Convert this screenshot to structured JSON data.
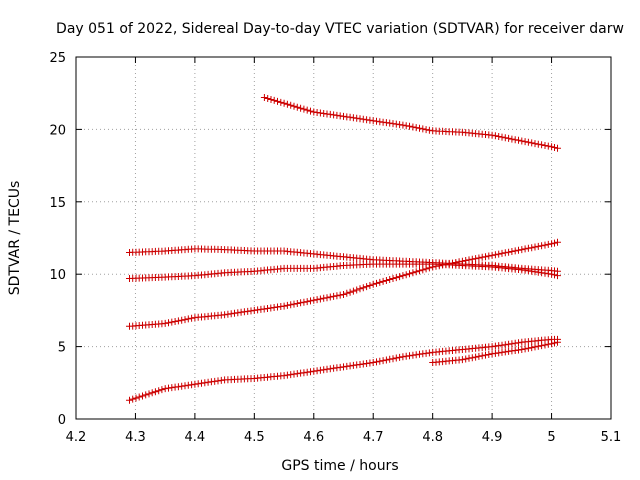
{
  "chart_data": {
    "type": "scatter",
    "title": "Day 051 of 2022, Sidereal Day-to-day VTEC variation (SDTVAR) for receiver darw",
    "xlabel": "GPS time / hours",
    "ylabel": "SDTVAR / TECUs",
    "xlim": [
      4.2,
      5.1
    ],
    "ylim": [
      0,
      25
    ],
    "xticks": [
      4.2,
      4.3,
      4.4,
      4.5,
      4.6,
      4.7,
      4.8,
      4.9,
      5.0,
      5.1
    ],
    "xtick_labels": [
      "4.2",
      "4.3",
      "4.4",
      "4.5",
      "4.6",
      "4.7",
      "4.8",
      "4.9",
      "5",
      "5.1"
    ],
    "yticks": [
      0,
      5,
      10,
      15,
      20,
      25
    ],
    "ytick_labels": [
      "0",
      "5",
      "10",
      "15",
      "20",
      "25"
    ],
    "grid": true,
    "marker": "plus",
    "color": "#cc0000",
    "series": [
      {
        "name": "s1",
        "x": [
          4.517,
          4.55,
          4.6,
          4.65,
          4.7,
          4.75,
          4.8,
          4.85,
          4.9,
          4.95,
          5.0,
          5.01
        ],
        "y": [
          22.2,
          21.8,
          21.2,
          20.9,
          20.6,
          20.3,
          19.9,
          19.8,
          19.6,
          19.2,
          18.8,
          18.7
        ]
      },
      {
        "name": "s2",
        "x": [
          4.29,
          4.35,
          4.4,
          4.45,
          4.5,
          4.55,
          4.6,
          4.65,
          4.7,
          4.75,
          4.8,
          4.85,
          4.9,
          4.95,
          5.0,
          5.01
        ],
        "y": [
          11.5,
          11.6,
          11.75,
          11.7,
          11.6,
          11.6,
          11.4,
          11.2,
          11.0,
          10.9,
          10.8,
          10.7,
          10.6,
          10.4,
          10.25,
          10.2
        ]
      },
      {
        "name": "s3",
        "x": [
          4.29,
          4.35,
          4.4,
          4.45,
          4.5,
          4.55,
          4.6,
          4.65,
          4.7,
          4.75,
          4.8,
          4.85,
          4.9,
          4.95,
          5.0,
          5.01
        ],
        "y": [
          9.7,
          9.8,
          9.9,
          10.1,
          10.2,
          10.4,
          10.4,
          10.6,
          10.7,
          10.7,
          10.7,
          10.6,
          10.5,
          10.3,
          10.0,
          9.9
        ]
      },
      {
        "name": "s4",
        "x": [
          4.29,
          4.35,
          4.4,
          4.45,
          4.5,
          4.55,
          4.6,
          4.65,
          4.7,
          4.75,
          4.8,
          4.85,
          4.9,
          4.95,
          5.0,
          5.01
        ],
        "y": [
          6.4,
          6.6,
          7.0,
          7.2,
          7.5,
          7.8,
          8.2,
          8.6,
          9.3,
          9.9,
          10.5,
          10.9,
          11.3,
          11.7,
          12.1,
          12.2
        ]
      },
      {
        "name": "s5",
        "x": [
          4.29,
          4.35,
          4.4,
          4.45,
          4.5,
          4.55,
          4.6,
          4.65,
          4.7,
          4.75,
          4.8,
          4.85,
          4.9,
          4.95,
          5.0,
          5.01
        ],
        "y": [
          1.3,
          2.1,
          2.4,
          2.7,
          2.8,
          3.0,
          3.3,
          3.6,
          3.9,
          4.3,
          4.6,
          4.8,
          5.0,
          5.3,
          5.5,
          5.5
        ]
      },
      {
        "name": "s6",
        "x": [
          4.8,
          4.85,
          4.9,
          4.95,
          5.0,
          5.01
        ],
        "y": [
          3.9,
          4.1,
          4.5,
          4.8,
          5.2,
          5.3
        ]
      }
    ]
  }
}
